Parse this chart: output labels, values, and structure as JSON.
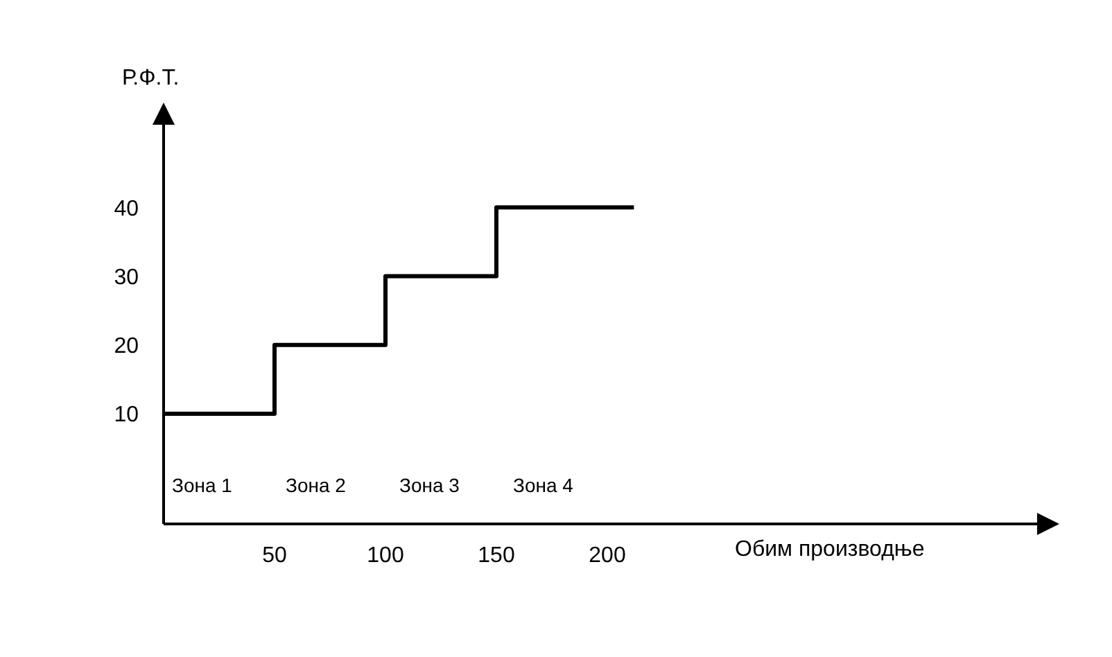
{
  "chart_data": {
    "type": "step",
    "xlabel": "Обим производње",
    "ylabel": "Р.Ф.Т.",
    "x": [
      0,
      50,
      100,
      150,
      212
    ],
    "series": [
      {
        "color": "#000000",
        "values": [
          10,
          20,
          30,
          40,
          40
        ]
      }
    ],
    "xlim": [
      0,
      395
    ],
    "ylim": [
      -6,
      52
    ],
    "xticks": [
      50,
      100,
      150,
      200
    ],
    "yticks": [
      10,
      20,
      30,
      40
    ],
    "grid": false,
    "legend": false,
    "marker": "none",
    "line_style": "solid",
    "annotations": [
      "Зона 1",
      "Зона 2",
      "Зона 3",
      "Зона 4"
    ]
  }
}
